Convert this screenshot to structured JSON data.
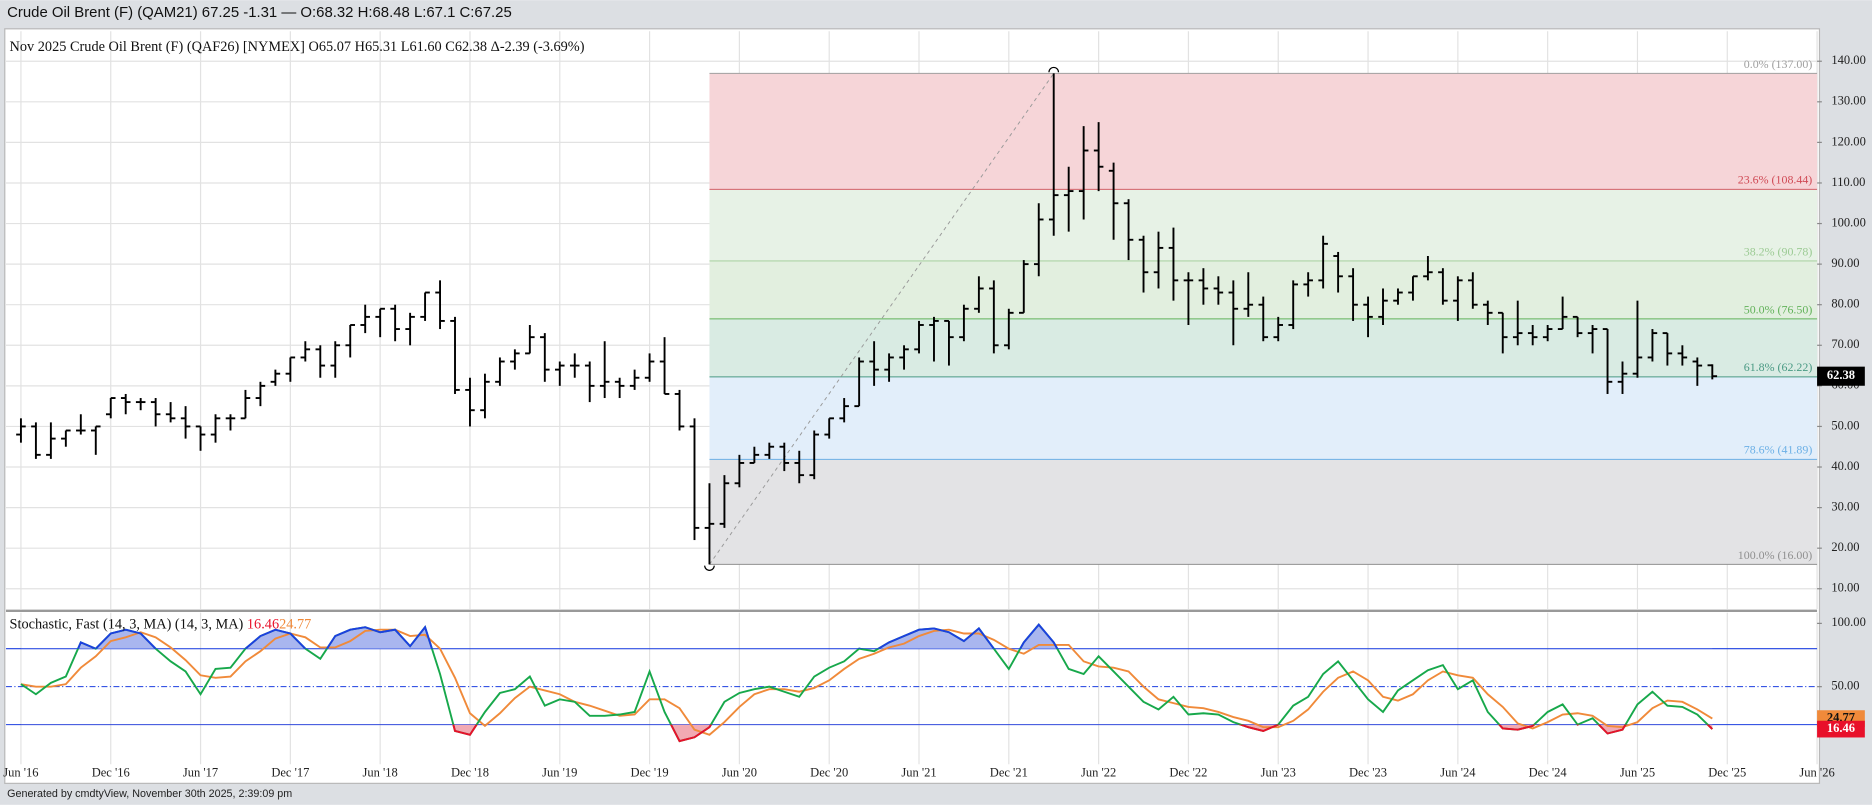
{
  "header": {
    "title": "Crude Oil Brent (F) (QAM21) 67.25 -1.31 — O:68.32 H:68.48 L:67.1 C:67.25"
  },
  "footer": {
    "text": "Generated by cmdtyView, November 30th 2025, 2:39:09 pm"
  },
  "chart_data": {
    "type": "ohlc",
    "title": "Nov 2025 Crude Oil Brent (F) (QAF26) [NYMEX]",
    "quote": [
      "O65.07",
      "H65.31",
      "L61.60",
      "C62.38",
      "Δ-2.39 (-3.69%)"
    ],
    "x": [
      "2016-06",
      "2016-07",
      "2016-08",
      "2016-09",
      "2016-10",
      "2016-11",
      "2016-12",
      "2017-01",
      "2017-02",
      "2017-03",
      "2017-04",
      "2017-05",
      "2017-06",
      "2017-07",
      "2017-08",
      "2017-09",
      "2017-10",
      "2017-11",
      "2017-12",
      "2018-01",
      "2018-02",
      "2018-03",
      "2018-04",
      "2018-05",
      "2018-06",
      "2018-07",
      "2018-08",
      "2018-09",
      "2018-10",
      "2018-11",
      "2018-12",
      "2019-01",
      "2019-02",
      "2019-03",
      "2019-04",
      "2019-05",
      "2019-06",
      "2019-07",
      "2019-08",
      "2019-09",
      "2019-10",
      "2019-11",
      "2019-12",
      "2020-01",
      "2020-02",
      "2020-03",
      "2020-04",
      "2020-05",
      "2020-06",
      "2020-07",
      "2020-08",
      "2020-09",
      "2020-10",
      "2020-11",
      "2020-12",
      "2021-01",
      "2021-02",
      "2021-03",
      "2021-04",
      "2021-05",
      "2021-06",
      "2021-07",
      "2021-08",
      "2021-09",
      "2021-10",
      "2021-11",
      "2021-12",
      "2022-01",
      "2022-02",
      "2022-03",
      "2022-04",
      "2022-05",
      "2022-06",
      "2022-07",
      "2022-08",
      "2022-09",
      "2022-10",
      "2022-11",
      "2022-12",
      "2023-01",
      "2023-02",
      "2023-03",
      "2023-04",
      "2023-05",
      "2023-06",
      "2023-07",
      "2023-08",
      "2023-09",
      "2023-10",
      "2023-11",
      "2023-12",
      "2024-01",
      "2024-02",
      "2024-03",
      "2024-04",
      "2024-05",
      "2024-06",
      "2024-07",
      "2024-08",
      "2024-09",
      "2024-10",
      "2024-11",
      "2024-12",
      "2025-01",
      "2025-02",
      "2025-03",
      "2025-04",
      "2025-05",
      "2025-06",
      "2025-07",
      "2025-08",
      "2025-09",
      "2025-10",
      "2025-11"
    ],
    "open": [
      48,
      50,
      43,
      47,
      49,
      49,
      53,
      57,
      56,
      56,
      53,
      52,
      50,
      48,
      52,
      52,
      57,
      61,
      63,
      67,
      69,
      65,
      70,
      75,
      77,
      79,
      74,
      77,
      83,
      76,
      59,
      54,
      61,
      66,
      68,
      72,
      64,
      65,
      65,
      60,
      61,
      60,
      62,
      66,
      58,
      50,
      25,
      26,
      36,
      41,
      43,
      45,
      41,
      38,
      48,
      52,
      55,
      66,
      64,
      67,
      69,
      75,
      76,
      72,
      79,
      84,
      70,
      78,
      90,
      101,
      107,
      108,
      118,
      113,
      105,
      96,
      88,
      94,
      86,
      86,
      84,
      83,
      79,
      80,
      72,
      75,
      85,
      86,
      92,
      87,
      80,
      77,
      81,
      83,
      87,
      88,
      81,
      86,
      80,
      78,
      72,
      73,
      72,
      74,
      77,
      73,
      74,
      61,
      63,
      67,
      73,
      68,
      66,
      65.07
    ],
    "high": [
      52,
      51,
      51,
      49,
      53,
      50,
      57,
      58,
      57,
      57,
      56,
      55,
      50,
      53,
      53,
      59,
      61,
      64,
      67,
      71,
      70,
      71,
      75,
      80,
      79,
      80,
      78,
      83,
      86,
      77,
      62,
      63,
      67,
      69,
      75,
      73,
      66,
      68,
      66,
      71,
      62,
      64,
      68,
      72,
      59,
      52,
      36,
      38,
      43,
      45,
      46,
      46,
      44,
      49,
      52,
      57,
      67,
      71,
      68,
      70,
      76,
      77,
      76,
      80,
      87,
      86,
      79,
      91,
      105,
      137,
      114,
      124,
      125,
      115,
      106,
      97,
      98,
      99,
      88,
      89,
      87,
      86,
      88,
      82,
      77,
      86,
      88,
      97,
      93,
      89,
      82,
      84,
      84,
      87,
      92,
      89,
      87,
      88,
      81,
      78,
      81,
      75,
      75,
      82,
      77,
      75,
      74,
      66,
      81,
      74,
      73,
      70,
      67,
      65.31
    ],
    "low": [
      46,
      42,
      42,
      45,
      48,
      43,
      52,
      53,
      54,
      50,
      51,
      47,
      44,
      46,
      49,
      52,
      55,
      60,
      61,
      66,
      62,
      62,
      67,
      73,
      72,
      71,
      70,
      76,
      74,
      58,
      50,
      52,
      60,
      64,
      68,
      61,
      60,
      62,
      56,
      57,
      57,
      59,
      61,
      58,
      49,
      22,
      16,
      25,
      35,
      41,
      42,
      39,
      36,
      37,
      47,
      51,
      55,
      60,
      61,
      64,
      68,
      66,
      65,
      71,
      78,
      68,
      69,
      78,
      87,
      97,
      98,
      101,
      108,
      96,
      91,
      83,
      84,
      81,
      75,
      80,
      80,
      70,
      77,
      71,
      71,
      74,
      82,
      84,
      83,
      76,
      72,
      75,
      80,
      81,
      86,
      80,
      76,
      79,
      75,
      68,
      70,
      70,
      71,
      74,
      72,
      68,
      58,
      58,
      62,
      66,
      65,
      65,
      60,
      61.6
    ],
    "close": [
      50,
      43,
      47,
      49,
      49,
      50,
      57,
      56,
      56,
      53,
      52,
      50,
      48,
      52,
      52,
      57,
      60,
      63,
      67,
      69,
      65,
      70,
      75,
      77,
      79,
      74,
      77,
      83,
      76,
      59,
      54,
      61,
      66,
      68,
      72,
      64,
      65,
      65,
      60,
      61,
      60,
      62,
      66,
      58,
      50,
      25,
      26,
      36,
      41,
      43,
      45,
      41,
      38,
      48,
      52,
      55,
      66,
      64,
      67,
      69,
      75,
      76,
      72,
      79,
      84,
      70,
      78,
      90,
      101,
      107,
      108,
      118,
      114,
      105,
      96,
      88,
      94,
      86,
      86,
      84,
      83,
      79,
      80,
      72,
      75,
      85,
      86,
      95,
      87,
      80,
      77,
      81,
      83,
      87,
      88,
      81,
      86,
      80,
      78,
      72,
      73,
      72,
      74,
      77,
      73,
      74,
      61,
      63,
      67,
      73,
      68,
      67,
      65,
      62.38
    ],
    "color": "#000000",
    "xlim": [
      "2016-05",
      "2026-06"
    ],
    "xticks": [
      {
        "value": "2016-06",
        "label": "Jun '16"
      },
      {
        "value": "2016-12",
        "label": "Dec '16"
      },
      {
        "value": "2017-06",
        "label": "Jun '17"
      },
      {
        "value": "2017-12",
        "label": "Dec '17"
      },
      {
        "value": "2018-06",
        "label": "Jun '18"
      },
      {
        "value": "2018-12",
        "label": "Dec '18"
      },
      {
        "value": "2019-06",
        "label": "Jun '19"
      },
      {
        "value": "2019-12",
        "label": "Dec '19"
      },
      {
        "value": "2020-06",
        "label": "Jun '20"
      },
      {
        "value": "2020-12",
        "label": "Dec '20"
      },
      {
        "value": "2021-06",
        "label": "Jun '21"
      },
      {
        "value": "2021-12",
        "label": "Dec '21"
      },
      {
        "value": "2022-06",
        "label": "Jun '22"
      },
      {
        "value": "2022-12",
        "label": "Dec '22"
      },
      {
        "value": "2023-06",
        "label": "Jun '23"
      },
      {
        "value": "2023-12",
        "label": "Dec '23"
      },
      {
        "value": "2024-06",
        "label": "Jun '24"
      },
      {
        "value": "2024-12",
        "label": "Dec '24"
      },
      {
        "value": "2025-06",
        "label": "Jun '25"
      },
      {
        "value": "2025-12",
        "label": "Dec '25"
      },
      {
        "value": "2026-06",
        "label": "Jun '26"
      }
    ],
    "ylim": [
      5,
      147.4
    ],
    "yticks": [
      {
        "value": 10,
        "label": "10.00"
      },
      {
        "value": 20,
        "label": "20.00"
      },
      {
        "value": 30,
        "label": "30.00"
      },
      {
        "value": 40,
        "label": "40.00"
      },
      {
        "value": 50,
        "label": "50.00"
      },
      {
        "value": 60,
        "label": "60.00"
      },
      {
        "value": 70,
        "label": "70.00"
      },
      {
        "value": 80,
        "label": "80.00"
      },
      {
        "value": 90,
        "label": "90.00"
      },
      {
        "value": 100,
        "label": "100.00"
      },
      {
        "value": 110,
        "label": "110.00"
      },
      {
        "value": 120,
        "label": "120.00"
      },
      {
        "value": 130,
        "label": "130.00"
      },
      {
        "value": 140,
        "label": "140.00"
      }
    ],
    "grid": true,
    "fibonacci": {
      "from": "2020-04",
      "to": "2022-03",
      "levels": [
        {
          "value": 137,
          "label": "0.0% (137.00)",
          "color": "#a0a0a0",
          "fill": "#f6d5d8"
        },
        {
          "value": 108.44,
          "label": "23.6% (108.44)",
          "color": "#d04a55",
          "fill": "#e7f2e6"
        },
        {
          "value": 90.78,
          "label": "38.2% (90.78)",
          "color": "#9ccb94",
          "fill": "#e2efdf"
        },
        {
          "value": 76.5,
          "label": "50.0% (76.50)",
          "color": "#62b25a",
          "fill": "#d9ebe3"
        },
        {
          "value": 62.22,
          "label": "61.8% (62.22)",
          "color": "#4a9a84",
          "fill": "#e2eefa"
        },
        {
          "value": 41.89,
          "label": "78.6% (41.89)",
          "color": "#6cb0e6",
          "fill": "#e3e3e5"
        },
        {
          "value": 16,
          "label": "100.0% (16.00)",
          "color": "#909090"
        }
      ]
    },
    "indicator": {
      "type": "line",
      "title": "Stochastic, Fast (14, 3, MA)  (14, 3, MA)",
      "ylim": [
        -11.3,
        108.5
      ],
      "yticks": [
        {
          "value": 50,
          "label": "50.00"
        },
        {
          "value": 100,
          "label": "100.00"
        }
      ],
      "overbought": 80,
      "oversold": 20,
      "midline": 50,
      "overbought_color": "#1c3fe0",
      "overbought_fill": "#a9b6ef",
      "oversold_color": "#e8102a",
      "oversold_fill": "#f2a9b3",
      "series": [
        {
          "color": "#17a84b",
          "values": [
            52,
            44,
            53,
            58,
            85,
            80,
            92,
            95,
            92,
            80,
            70,
            62,
            44,
            64,
            65,
            80,
            90,
            95,
            92,
            80,
            72,
            90,
            95,
            97,
            93,
            95,
            82,
            97,
            60,
            15,
            12,
            30,
            45,
            48,
            58,
            35,
            40,
            38,
            27,
            27,
            28,
            30,
            62,
            30,
            7,
            10,
            18,
            38,
            45,
            48,
            50,
            46,
            42,
            58,
            65,
            70,
            80,
            78,
            85,
            90,
            95,
            96,
            93,
            86,
            96,
            80,
            64,
            85,
            99,
            85,
            64,
            60,
            74,
            62,
            50,
            38,
            32,
            42,
            28,
            29,
            28,
            22,
            18,
            15,
            20,
            35,
            42,
            60,
            70,
            55,
            40,
            30,
            47,
            55,
            63,
            67,
            48,
            55,
            30,
            17,
            16,
            19,
            30,
            36,
            20,
            25,
            13,
            16,
            36,
            46,
            35,
            34,
            28,
            16.46
          ]
        },
        {
          "color": "#f08a3a",
          "values": [
            52,
            50,
            50,
            52,
            65,
            74,
            86,
            89,
            93,
            89,
            81,
            71,
            59,
            57,
            58,
            70,
            78,
            88,
            92,
            89,
            81,
            81,
            86,
            94,
            95,
            95,
            90,
            91,
            80,
            57,
            29,
            19,
            29,
            41,
            50,
            47,
            44,
            38,
            35,
            31,
            27,
            28,
            40,
            40,
            33,
            16,
            12,
            22,
            34,
            44,
            48,
            48,
            46,
            49,
            55,
            64,
            72,
            76,
            81,
            84,
            90,
            94,
            95,
            92,
            92,
            87,
            80,
            76,
            83,
            83,
            83,
            70,
            66,
            65,
            62,
            50,
            40,
            37,
            34,
            33,
            30,
            26,
            23,
            18,
            18,
            23,
            32,
            46,
            57,
            62,
            55,
            42,
            39,
            44,
            55,
            62,
            59,
            57,
            44,
            34,
            21,
            17,
            22,
            28,
            29,
            27,
            19,
            18,
            22,
            33,
            39,
            38,
            32,
            24.77
          ]
        }
      ]
    }
  }
}
